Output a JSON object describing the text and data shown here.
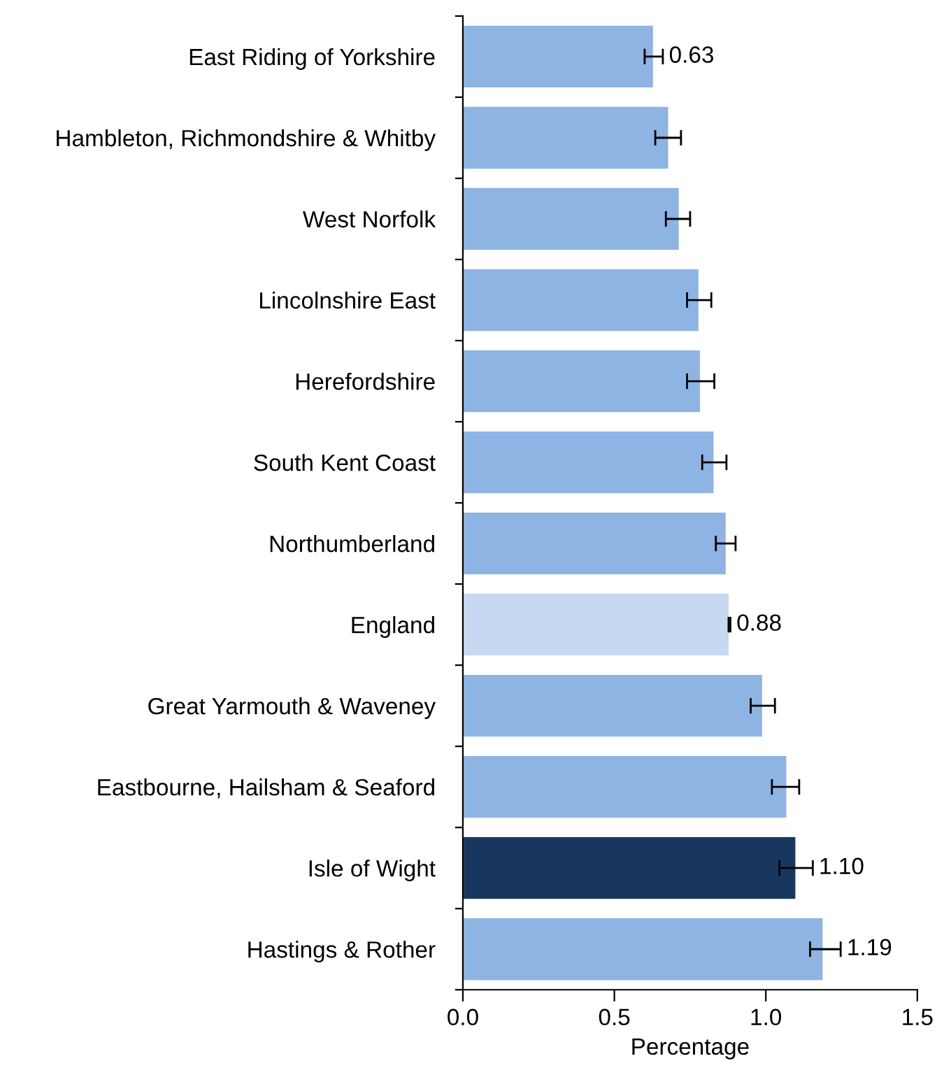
{
  "chart_data": {
    "type": "bar",
    "orientation": "horizontal",
    "xlabel": "Percentage",
    "categories": [
      "East Riding of Yorkshire",
      "Hambleton, Richmondshire & Whitby",
      "West Norfolk",
      "Lincolnshire East",
      "Herefordshire",
      "South Kent Coast",
      "Northumberland",
      "England",
      "Great Yarmouth & Waveney",
      "Eastbourne, Hailsham & Seaford",
      "Isle of Wight",
      "Hastings & Rother"
    ],
    "values": [
      0.63,
      0.68,
      0.715,
      0.78,
      0.785,
      0.83,
      0.87,
      0.88,
      0.99,
      1.07,
      1.1,
      1.19
    ],
    "errors": [
      [
        0.6,
        0.66
      ],
      [
        0.635,
        0.72
      ],
      [
        0.67,
        0.75
      ],
      [
        0.74,
        0.82
      ],
      [
        0.74,
        0.83
      ],
      [
        0.79,
        0.87
      ],
      [
        0.835,
        0.9
      ],
      [
        0.877,
        0.883
      ],
      [
        0.95,
        1.03
      ],
      [
        1.02,
        1.11
      ],
      [
        1.045,
        1.155
      ],
      [
        1.146,
        1.247
      ]
    ],
    "colors": [
      "#8eb4e3",
      "#8eb4e3",
      "#8eb4e3",
      "#8eb4e3",
      "#8eb4e3",
      "#8eb4e3",
      "#8eb4e3",
      "#c6d9f1",
      "#8eb4e3",
      "#8eb4e3",
      "#17375e",
      "#8eb4e3"
    ],
    "value_labels": [
      "0.63",
      null,
      null,
      null,
      null,
      null,
      null,
      "0.88",
      null,
      null,
      "1.10",
      "1.19"
    ],
    "xlim": [
      0,
      1.5
    ],
    "xticks": [
      {
        "value": 0,
        "label": "0.0"
      },
      0.5,
      {
        "value": 1,
        "label": "1.0"
      },
      1.5
    ],
    "grid": false,
    "legend": false
  }
}
